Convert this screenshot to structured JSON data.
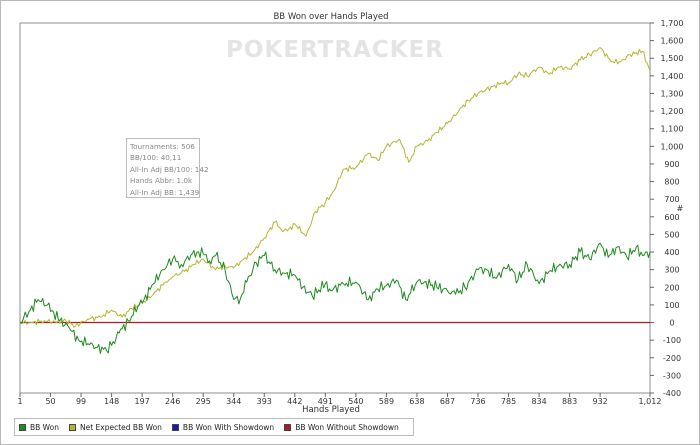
{
  "chart_data": {
    "type": "line",
    "title": "BB Won over Hands Played",
    "xlabel": "Hands Played",
    "ylabel": "#",
    "xlim": [
      1,
      1012
    ],
    "ylim": [
      -400,
      1700
    ],
    "x_ticks": [
      1,
      50,
      99,
      148,
      197,
      246,
      295,
      344,
      393,
      442,
      491,
      540,
      589,
      638,
      687,
      736,
      785,
      834,
      883,
      932,
      1012
    ],
    "x_tick_labels": [
      "1",
      "50",
      "99",
      "148",
      "197",
      "246",
      "295",
      "344",
      "393",
      "442",
      "491",
      "540",
      "589",
      "638",
      "687",
      "736",
      "785",
      "834",
      "883",
      "932",
      "1,012"
    ],
    "y_ticks": [
      -400,
      -300,
      -200,
      -100,
      0,
      100,
      200,
      300,
      400,
      500,
      600,
      700,
      800,
      900,
      1000,
      1100,
      1200,
      1300,
      1400,
      1500,
      1600,
      1700
    ],
    "y_tick_labels": [
      "-400",
      "-300",
      "-200",
      "-100",
      "0",
      "100",
      "200",
      "300",
      "400",
      "500",
      "600",
      "700",
      "800",
      "900",
      "1,000",
      "1,100",
      "1,200",
      "1,300",
      "1,400",
      "1,500",
      "1,600",
      "1,700"
    ],
    "grid": false,
    "legend_position": "bottom-left",
    "watermark": "POKERTRACKER",
    "series": [
      {
        "name": "BB Won",
        "color": "#1f8a1f",
        "x": [
          1,
          15,
          30,
          45,
          55,
          65,
          80,
          95,
          110,
          125,
          140,
          148,
          160,
          175,
          190,
          200,
          215,
          230,
          246,
          260,
          275,
          285,
          295,
          305,
          315,
          330,
          344,
          355,
          365,
          380,
          393,
          410,
          425,
          442,
          455,
          470,
          491,
          500,
          520,
          540,
          560,
          575,
          589,
          605,
          620,
          638,
          650,
          670,
          687,
          700,
          715,
          736,
          750,
          765,
          785,
          800,
          815,
          834,
          850,
          865,
          883,
          900,
          915,
          932,
          945,
          960,
          975,
          990,
          1000,
          1012
        ],
        "values": [
          0,
          60,
          130,
          100,
          60,
          10,
          -30,
          -100,
          -120,
          -140,
          -160,
          -130,
          -60,
          10,
          90,
          130,
          220,
          300,
          360,
          330,
          380,
          400,
          390,
          350,
          380,
          300,
          130,
          140,
          230,
          340,
          380,
          300,
          280,
          270,
          200,
          150,
          220,
          180,
          220,
          230,
          130,
          190,
          210,
          240,
          130,
          230,
          230,
          200,
          180,
          160,
          200,
          300,
          300,
          250,
          330,
          240,
          330,
          220,
          290,
          320,
          330,
          400,
          360,
          450,
          370,
          430,
          370,
          430,
          380,
          400
        ]
      },
      {
        "name": "Net Expected BB Won",
        "color": "#b5b52e",
        "x": [
          1,
          20,
          40,
          60,
          75,
          90,
          110,
          130,
          148,
          165,
          180,
          197,
          215,
          235,
          246,
          265,
          280,
          295,
          315,
          330,
          344,
          360,
          375,
          393,
          410,
          420,
          430,
          442,
          460,
          475,
          491,
          505,
          520,
          540,
          560,
          575,
          589,
          610,
          625,
          638,
          655,
          670,
          687,
          705,
          720,
          736,
          760,
          775,
          785,
          800,
          815,
          834,
          850,
          865,
          883,
          900,
          915,
          932,
          950,
          965,
          980,
          1000,
          1012
        ],
        "values": [
          0,
          0,
          10,
          0,
          10,
          -20,
          20,
          30,
          70,
          30,
          80,
          110,
          160,
          230,
          260,
          290,
          330,
          360,
          300,
          320,
          310,
          360,
          400,
          480,
          570,
          530,
          520,
          560,
          490,
          630,
          680,
          750,
          870,
          880,
          960,
          920,
          1000,
          1040,
          910,
          1000,
          1030,
          1080,
          1130,
          1200,
          1260,
          1300,
          1340,
          1360,
          1360,
          1410,
          1400,
          1450,
          1410,
          1450,
          1440,
          1490,
          1520,
          1560,
          1480,
          1480,
          1520,
          1540,
          1430
        ]
      },
      {
        "name": "BB Won With Showdown",
        "color": "#1a1aa8",
        "x": [],
        "values": []
      },
      {
        "name": "BB Won Without Showdown",
        "color": "#a51f1f",
        "x": [
          1,
          1012
        ],
        "values": [
          0,
          0
        ]
      }
    ],
    "stats_box": [
      "Tournaments: 506",
      "BB/100: 40,11",
      "All-In Adj BB/100: 142",
      "Hands Abbr: 1.0k",
      "All-In Adj BB: 1,439"
    ]
  }
}
